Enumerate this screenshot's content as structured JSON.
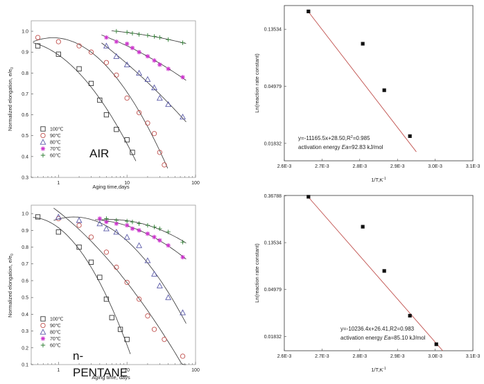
{
  "chart_data": [
    {
      "id": "air-elong",
      "type": "scatter",
      "panel_label": "AIR",
      "xlabel": "Aging time,days",
      "ylabel": "Normalized elongation, e/e",
      "ylabel_sub": "0",
      "x_scale": "log",
      "xlim": [
        0.4,
        100
      ],
      "ylim": [
        0.3,
        1.05
      ],
      "x_ticks": [
        {
          "v": 1,
          "t": "1"
        },
        {
          "v": 10,
          "t": "10"
        },
        {
          "v": 100,
          "t": "100"
        }
      ],
      "y_ticks": [
        {
          "v": 0.3,
          "t": "0.3"
        },
        {
          "v": 0.4,
          "t": "0.4"
        },
        {
          "v": 0.5,
          "t": "0.5"
        },
        {
          "v": 0.6,
          "t": "0.6"
        },
        {
          "v": 0.7,
          "t": "0.7"
        },
        {
          "v": 0.8,
          "t": "0.8"
        },
        {
          "v": 0.9,
          "t": "0.9"
        },
        {
          "v": 1.0,
          "t": "1.0"
        }
      ],
      "legend": [
        "100℃",
        "90℃",
        "80℃",
        "70℃",
        "60℃"
      ],
      "series": [
        {
          "name": "100℃",
          "marker": "square",
          "color": "#333333",
          "curve": "#333333",
          "x": [
            0.5,
            1,
            2,
            3,
            4,
            5,
            7,
            10,
            12
          ],
          "y": [
            0.93,
            0.89,
            0.82,
            0.75,
            0.67,
            0.6,
            0.53,
            0.48,
            0.42
          ]
        },
        {
          "name": "90℃",
          "marker": "circle",
          "color": "#c0504d",
          "curve": "#333333",
          "x": [
            0.5,
            1,
            2,
            3,
            5,
            7,
            10,
            15,
            20,
            25,
            30,
            35
          ],
          "y": [
            0.97,
            0.95,
            0.93,
            0.9,
            0.85,
            0.79,
            0.68,
            0.61,
            0.56,
            0.51,
            0.42,
            0.36
          ]
        },
        {
          "name": "80℃",
          "marker": "triangle",
          "color": "#5a5aa8",
          "curve": "#333333",
          "x": [
            5,
            7,
            10,
            15,
            20,
            25,
            30,
            40,
            65
          ],
          "y": [
            0.93,
            0.88,
            0.84,
            0.8,
            0.77,
            0.73,
            0.68,
            0.65,
            0.59
          ]
        },
        {
          "name": "70℃",
          "marker": "star",
          "color": "#cc33cc",
          "curve": "#333333",
          "x": [
            5,
            7,
            10,
            12,
            15,
            20,
            25,
            30,
            40,
            65
          ],
          "y": [
            0.97,
            0.95,
            0.94,
            0.92,
            0.9,
            0.88,
            0.86,
            0.84,
            0.82,
            0.78
          ]
        },
        {
          "name": "60℃",
          "marker": "plus",
          "color": "#2e7d32",
          "curve": "#333333",
          "x": [
            7,
            10,
            12,
            15,
            20,
            25,
            30,
            40,
            65
          ],
          "y": [
            1.0,
            0.995,
            0.99,
            0.985,
            0.98,
            0.975,
            0.97,
            0.96,
            0.945
          ]
        }
      ]
    },
    {
      "id": "pentane-elong",
      "type": "scatter",
      "panel_label": "n-\nPENTANE",
      "panel_label_lines": [
        "n-",
        "PENTANE"
      ],
      "xlabel": "Aging time, days",
      "ylabel": "Normalized elongation, e/e",
      "ylabel_sub": "0",
      "x_scale": "log",
      "xlim": [
        0.4,
        100
      ],
      "ylim": [
        0.1,
        1.05
      ],
      "x_ticks": [
        {
          "v": 1,
          "t": "1"
        },
        {
          "v": 10,
          "t": "10"
        },
        {
          "v": 100,
          "t": "100"
        }
      ],
      "y_ticks": [
        {
          "v": 0.1,
          "t": "0.1"
        },
        {
          "v": 0.2,
          "t": "0.2"
        },
        {
          "v": 0.3,
          "t": "0.3"
        },
        {
          "v": 0.4,
          "t": "0.4"
        },
        {
          "v": 0.5,
          "t": "0.5"
        },
        {
          "v": 0.6,
          "t": "0.6"
        },
        {
          "v": 0.7,
          "t": "0.7"
        },
        {
          "v": 0.8,
          "t": "0.8"
        },
        {
          "v": 0.9,
          "t": "0.9"
        },
        {
          "v": 1.0,
          "t": "1.0"
        }
      ],
      "legend": [
        "100℃",
        "90℃",
        "80℃",
        "70℃",
        "60℃"
      ],
      "series": [
        {
          "name": "100℃",
          "marker": "square",
          "color": "#333333",
          "curve": "#333333",
          "x": [
            0.5,
            1,
            2,
            3,
            4,
            5,
            6,
            8,
            10
          ],
          "y": [
            0.98,
            0.89,
            0.8,
            0.71,
            0.62,
            0.49,
            0.38,
            0.31,
            0.25
          ]
        },
        {
          "name": "90℃",
          "marker": "circle",
          "color": "#c0504d",
          "curve": "#333333",
          "x": [
            1,
            2,
            3,
            5,
            7,
            10,
            15,
            20,
            25,
            35,
            65
          ],
          "y": [
            0.97,
            0.93,
            0.86,
            0.77,
            0.68,
            0.59,
            0.49,
            0.39,
            0.31,
            0.25,
            0.15
          ]
        },
        {
          "name": "80℃",
          "marker": "triangle",
          "color": "#5a5aa8",
          "curve": "#333333",
          "x": [
            1,
            2,
            4,
            5,
            7,
            10,
            15,
            20,
            25,
            30,
            40,
            65
          ],
          "y": [
            0.98,
            0.96,
            0.94,
            0.91,
            0.89,
            0.86,
            0.81,
            0.72,
            0.64,
            0.57,
            0.5,
            0.41
          ]
        },
        {
          "name": "70℃",
          "marker": "star",
          "color": "#cc33cc",
          "curve": "#333333",
          "x": [
            4,
            5,
            7,
            10,
            12,
            15,
            20,
            25,
            30,
            40,
            65
          ],
          "y": [
            0.97,
            0.95,
            0.94,
            0.93,
            0.91,
            0.9,
            0.88,
            0.86,
            0.84,
            0.81,
            0.74
          ]
        },
        {
          "name": "60℃",
          "marker": "plus",
          "color": "#2e7d32",
          "curve": "#333333",
          "x": [
            5,
            7,
            10,
            12,
            15,
            20,
            25,
            30,
            40,
            65
          ],
          "y": [
            0.97,
            0.96,
            0.955,
            0.95,
            0.94,
            0.93,
            0.92,
            0.91,
            0.89,
            0.83
          ]
        }
      ]
    },
    {
      "id": "air-arrhenius",
      "type": "scatter",
      "xlabel": "1/T,K",
      "xlabel_sup": "-1",
      "ylabel": "Ln(reaction rate constant)",
      "x_scale": "linear",
      "y_scale": "log",
      "xlim": [
        0.0026,
        0.0031
      ],
      "ylim": [
        0.0135,
        0.205
      ],
      "x_ticks": [
        {
          "v": 0.0026,
          "t": "2.6E-3"
        },
        {
          "v": 0.0027,
          "t": "2.7E-3"
        },
        {
          "v": 0.0028,
          "t": "2.8E-3"
        },
        {
          "v": 0.0029,
          "t": "2.9E-3"
        },
        {
          "v": 0.003,
          "t": "3.0E-3"
        },
        {
          "v": 0.0031,
          "t": "3.1E-3"
        }
      ],
      "y_ticks": [
        {
          "v": 0.01832,
          "t": "0.01832"
        },
        {
          "v": 0.04979,
          "t": "0.04979"
        },
        {
          "v": 0.13534,
          "t": "0.13534"
        }
      ],
      "points": {
        "x": [
          0.002664,
          0.002808,
          0.002865,
          0.002933
        ],
        "y": [
          0.185,
          0.105,
          0.0465,
          0.0208
        ]
      },
      "fit": {
        "x": [
          0.00266,
          0.00295
        ],
        "y": [
          0.19,
          0.0158
        ]
      },
      "annotation": [
        "y=-11165.5x+28.50,R",
        "2",
        "=0.985"
      ],
      "annotation2": [
        "activation energy ",
        "Ea",
        "=92.83 kJ/mol"
      ]
    },
    {
      "id": "pentane-arrhenius",
      "type": "scatter",
      "xlabel": "1/T,K",
      "xlabel_sup": "-1",
      "ylabel": "Ln(reaction rate constant)",
      "x_scale": "linear",
      "y_scale": "log",
      "xlim": [
        0.0026,
        0.0031
      ],
      "ylim": [
        0.0135,
        0.37
      ],
      "x_ticks": [
        {
          "v": 0.0026,
          "t": "2.6E-3"
        },
        {
          "v": 0.0027,
          "t": "2.7E-3"
        },
        {
          "v": 0.0028,
          "t": "2.8E-3"
        },
        {
          "v": 0.0029,
          "t": "2.9E-3"
        },
        {
          "v": 0.003,
          "t": "3.0E-3"
        },
        {
          "v": 0.0031,
          "t": "3.1E-3"
        }
      ],
      "y_ticks": [
        {
          "v": 0.01832,
          "t": "0.01832"
        },
        {
          "v": 0.04979,
          "t": "0.04979"
        },
        {
          "v": 0.13534,
          "t": "0.13534"
        },
        {
          "v": 0.36788,
          "t": "0.36788"
        }
      ],
      "points": {
        "x": [
          0.002664,
          0.002808,
          0.002865,
          0.002933,
          0.003003
        ],
        "y": [
          0.36,
          0.19,
          0.074,
          0.0285,
          0.0155
        ]
      },
      "fit": {
        "x": [
          0.00266,
          0.00302
        ],
        "y": [
          0.37,
          0.0135
        ]
      },
      "annotation": [
        "y=-10236.4x+26.41,R2=0.983"
      ],
      "annotation2": [
        "activation energy ",
        "Ea",
        "=85.10 kJ/mol"
      ]
    }
  ]
}
